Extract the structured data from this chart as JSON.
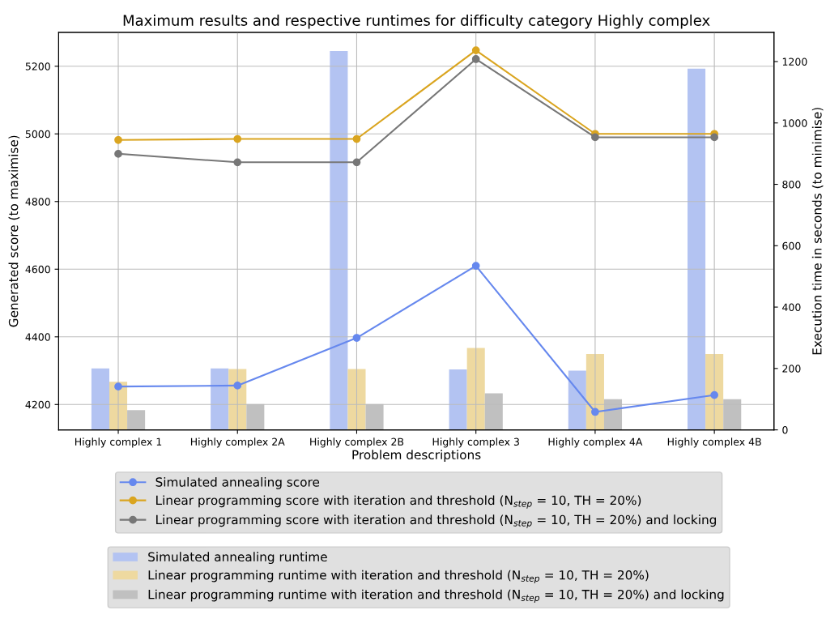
{
  "chart_data": {
    "type": "line",
    "title": "Maximum results and respective runtimes for difficulty category Highly complex",
    "xlabel": "Problem descriptions",
    "ylabel": "Generated score (to maximise)",
    "y2label": "Execution time in seconds (to minimise)",
    "categories": [
      "Highly complex 1",
      "Highly complex 2A",
      "Highly complex 2B",
      "Highly complex 3",
      "Highly complex 4A",
      "Highly complex 4B"
    ],
    "series": [
      {
        "name": "Simulated annealing score",
        "color": "#6688ee",
        "values": [
          4253,
          4256,
          4397,
          4610,
          4178,
          4228
        ]
      },
      {
        "name": "Linear programming score with iteration and threshold (N$_{step}$ = 10, TH = 20%)",
        "color": "#daa520",
        "values": [
          4982,
          4985,
          4985,
          5247,
          5000,
          5000
        ]
      },
      {
        "name": "Linear programming score with iteration and threshold (N$_{step}$ = 10, TH = 20%) and locking",
        "color": "#777777",
        "values": [
          4941,
          4916,
          4916,
          5221,
          4990,
          4990
        ]
      },
      {
        "name": "Simulated annealing runtime",
        "type": "bar",
        "axis": "y2",
        "color": "#b3c3f2",
        "values": [
          200,
          200,
          1234,
          197,
          193,
          1177
        ]
      },
      {
        "name": "Linear programming runtime with iteration and threshold (N$_{step}$ = 10, TH = 20%)",
        "type": "bar",
        "axis": "y2",
        "color": "#eed9a0",
        "values": [
          157,
          198,
          198,
          267,
          247,
          247
        ]
      },
      {
        "name": "Linear programming runtime with iteration and threshold (N$_{step}$ = 10, TH = 20%) and locking",
        "type": "bar",
        "axis": "y2",
        "color": "#c0c0c0",
        "values": [
          64,
          84,
          84,
          119,
          100,
          100
        ]
      }
    ],
    "ylim": [
      4125,
      5300
    ],
    "yticks": [
      4200,
      4400,
      4600,
      4800,
      5000,
      5200
    ],
    "y2lim": [
      0,
      1295
    ],
    "y2ticks": [
      0,
      200,
      400,
      600,
      800,
      1000,
      1200
    ],
    "grid": true,
    "legend": "bottom",
    "marker": "circle"
  }
}
